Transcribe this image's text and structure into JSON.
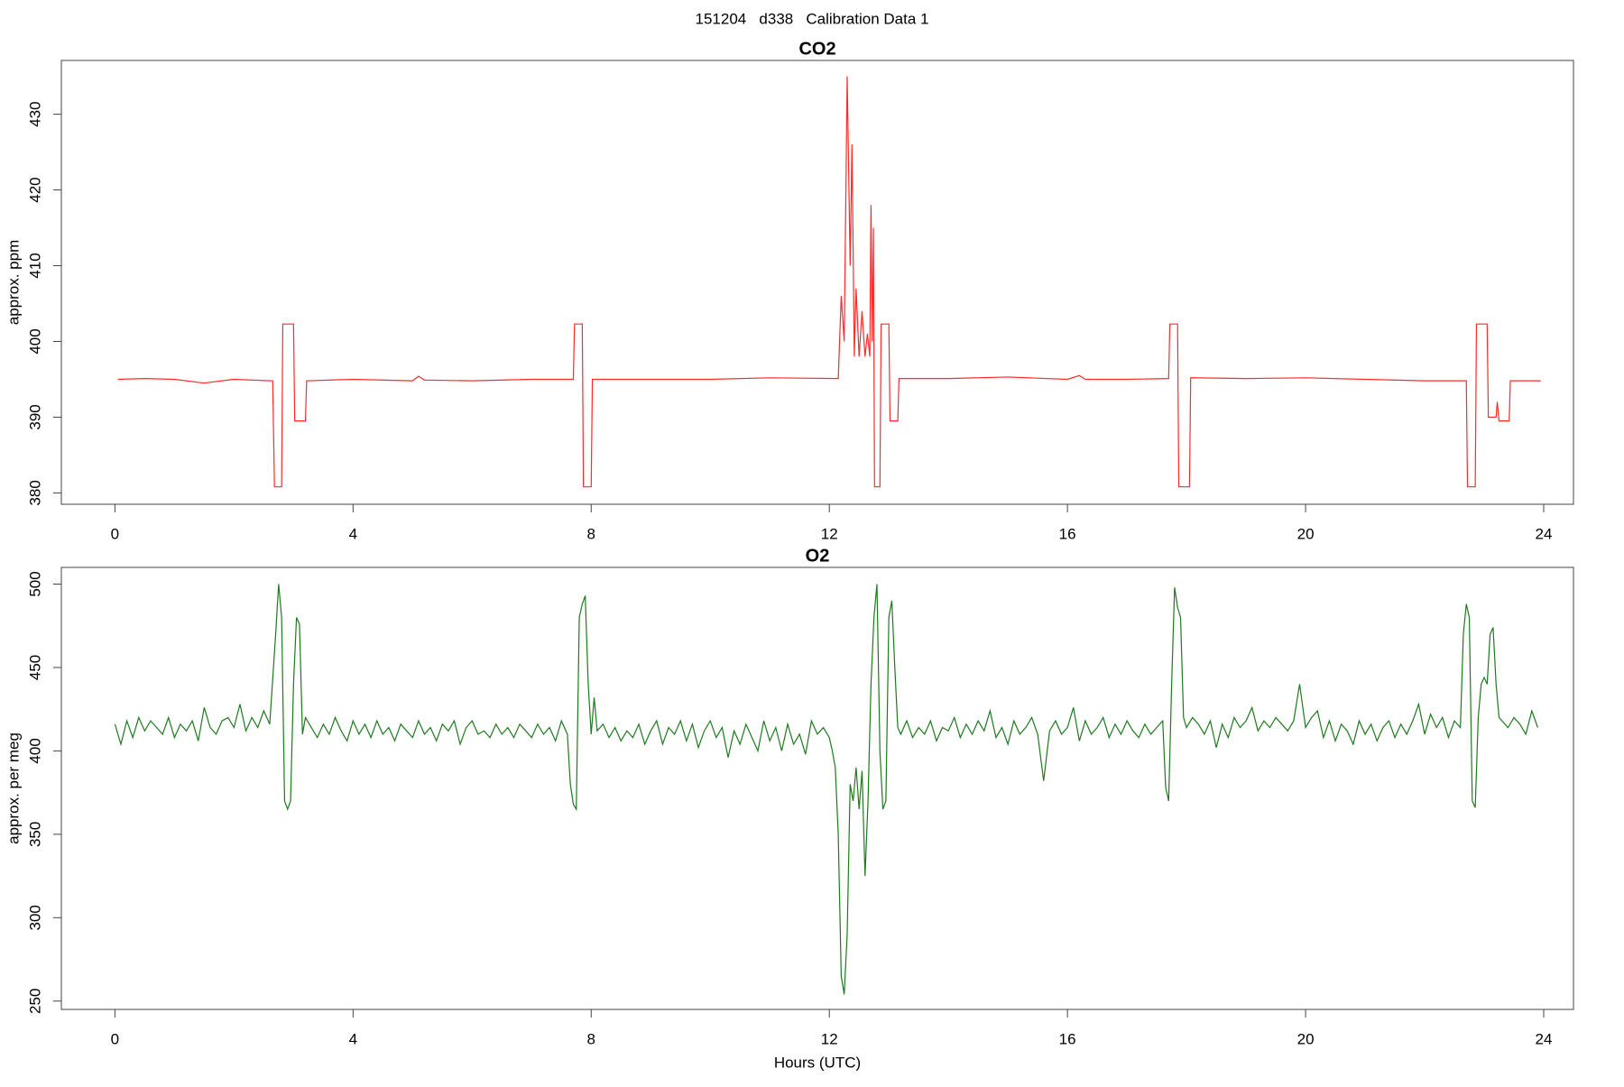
{
  "title": "151204   d338   Calibration Data 1",
  "chart_data": [
    {
      "type": "line",
      "title": "CO2",
      "ylabel": "approx. ppm",
      "xlim": [
        -0.9,
        24.5
      ],
      "xticks": [
        0,
        4,
        8,
        12,
        16,
        20,
        24
      ],
      "ylim": [
        378.5,
        437.1
      ],
      "yticks": [
        380,
        390,
        400,
        410,
        420,
        430
      ],
      "grid": false,
      "x": [
        0.05,
        0.5,
        1.0,
        1.5,
        2.0,
        2.65,
        2.68,
        2.8,
        2.82,
        3.0,
        3.02,
        3.2,
        3.22,
        4.0,
        5.0,
        5.1,
        5.2,
        6.0,
        7.0,
        7.7,
        7.72,
        7.85,
        7.87,
        8.0,
        8.02,
        9.0,
        10.0,
        11.0,
        12.15,
        12.2,
        12.25,
        12.3,
        12.35,
        12.38,
        12.42,
        12.45,
        12.5,
        12.55,
        12.6,
        12.64,
        12.68,
        12.7,
        12.72,
        12.74,
        12.76,
        12.85,
        12.87,
        13.0,
        13.02,
        13.15,
        13.17,
        14.0,
        15.0,
        16.0,
        16.2,
        16.3,
        17.0,
        17.7,
        17.72,
        17.85,
        17.87,
        18.05,
        18.07,
        19.0,
        20.0,
        21.0,
        22.0,
        22.7,
        22.72,
        22.85,
        22.87,
        23.05,
        23.07,
        23.2,
        23.22,
        23.25,
        23.42,
        23.44,
        23.95
      ],
      "series": [
        {
          "color": "#ff2a2a",
          "values": [
            395,
            395.1,
            395,
            394.5,
            395,
            394.8,
            380.8,
            380.8,
            402.3,
            402.3,
            389.5,
            389.5,
            394.8,
            395,
            394.8,
            395.4,
            394.9,
            394.8,
            395,
            395,
            402.3,
            402.3,
            380.8,
            380.8,
            395,
            395,
            395,
            395.2,
            395.1,
            406,
            400,
            435,
            410,
            426,
            398,
            407,
            398,
            404,
            398,
            401,
            398,
            418,
            400,
            415,
            380.8,
            380.8,
            402.3,
            402.3,
            389.5,
            389.5,
            395.1,
            395.1,
            395.3,
            395,
            395.5,
            395,
            395,
            395.1,
            402.3,
            402.3,
            380.8,
            380.8,
            395.2,
            395.1,
            395.2,
            395,
            394.8,
            394.8,
            380.8,
            380.8,
            402.3,
            402.3,
            390,
            390,
            392,
            389.5,
            389.5,
            394.8,
            394.8
          ]
        }
      ]
    },
    {
      "type": "line",
      "title": "O2",
      "ylabel": "approx. per meg",
      "xlabel": "Hours (UTC)",
      "xlim": [
        -0.9,
        24.5
      ],
      "xticks": [
        0,
        4,
        8,
        12,
        16,
        20,
        24
      ],
      "ylim": [
        245,
        510
      ],
      "yticks": [
        250,
        300,
        350,
        400,
        450,
        500
      ],
      "grid": false,
      "x": [
        0.0,
        0.1,
        0.2,
        0.3,
        0.4,
        0.5,
        0.6,
        0.7,
        0.8,
        0.9,
        1.0,
        1.1,
        1.2,
        1.3,
        1.4,
        1.5,
        1.6,
        1.7,
        1.8,
        1.9,
        2.0,
        2.1,
        2.2,
        2.3,
        2.4,
        2.5,
        2.6,
        2.7,
        2.75,
        2.8,
        2.85,
        2.9,
        2.95,
        3.0,
        3.05,
        3.1,
        3.15,
        3.2,
        3.3,
        3.4,
        3.5,
        3.6,
        3.7,
        3.8,
        3.9,
        4.0,
        4.1,
        4.2,
        4.3,
        4.4,
        4.5,
        4.6,
        4.7,
        4.8,
        4.9,
        5.0,
        5.1,
        5.2,
        5.3,
        5.4,
        5.5,
        5.6,
        5.7,
        5.8,
        5.9,
        6.0,
        6.1,
        6.2,
        6.3,
        6.4,
        6.5,
        6.6,
        6.7,
        6.8,
        6.9,
        7.0,
        7.1,
        7.2,
        7.3,
        7.4,
        7.5,
        7.6,
        7.65,
        7.7,
        7.75,
        7.8,
        7.85,
        7.9,
        7.95,
        8.0,
        8.05,
        8.1,
        8.2,
        8.3,
        8.4,
        8.5,
        8.6,
        8.7,
        8.8,
        8.9,
        9.0,
        9.1,
        9.2,
        9.3,
        9.4,
        9.5,
        9.6,
        9.7,
        9.8,
        9.9,
        10.0,
        10.1,
        10.2,
        10.3,
        10.4,
        10.5,
        10.6,
        10.7,
        10.8,
        10.9,
        11.0,
        11.1,
        11.2,
        11.3,
        11.4,
        11.5,
        11.6,
        11.7,
        11.8,
        11.9,
        12.0,
        12.05,
        12.1,
        12.15,
        12.2,
        12.25,
        12.3,
        12.35,
        12.4,
        12.45,
        12.5,
        12.55,
        12.6,
        12.65,
        12.7,
        12.75,
        12.8,
        12.85,
        12.9,
        12.95,
        13.0,
        13.05,
        13.1,
        13.15,
        13.2,
        13.3,
        13.4,
        13.5,
        13.6,
        13.7,
        13.8,
        13.9,
        14.0,
        14.1,
        14.2,
        14.3,
        14.4,
        14.5,
        14.6,
        14.7,
        14.8,
        14.9,
        15.0,
        15.1,
        15.2,
        15.3,
        15.4,
        15.5,
        15.6,
        15.7,
        15.8,
        15.9,
        16.0,
        16.1,
        16.2,
        16.3,
        16.4,
        16.5,
        16.6,
        16.7,
        16.8,
        16.9,
        17.0,
        17.1,
        17.2,
        17.3,
        17.4,
        17.5,
        17.6,
        17.65,
        17.7,
        17.75,
        17.8,
        17.85,
        17.9,
        17.95,
        18.0,
        18.1,
        18.2,
        18.3,
        18.4,
        18.5,
        18.6,
        18.7,
        18.8,
        18.9,
        19.0,
        19.1,
        19.2,
        19.3,
        19.4,
        19.5,
        19.6,
        19.7,
        19.8,
        19.9,
        20.0,
        20.1,
        20.2,
        20.3,
        20.4,
        20.5,
        20.6,
        20.7,
        20.8,
        20.9,
        21.0,
        21.1,
        21.2,
        21.3,
        21.4,
        21.5,
        21.6,
        21.7,
        21.8,
        21.9,
        22.0,
        22.1,
        22.2,
        22.3,
        22.4,
        22.5,
        22.6,
        22.65,
        22.7,
        22.75,
        22.8,
        22.85,
        22.9,
        22.95,
        23.0,
        23.05,
        23.1,
        23.15,
        23.2,
        23.25,
        23.3,
        23.4,
        23.5,
        23.6,
        23.7,
        23.8,
        23.9
      ],
      "series": [
        {
          "color": "#1e7a1e",
          "values": [
            416,
            404,
            418,
            408,
            420,
            412,
            418,
            414,
            410,
            420,
            408,
            416,
            412,
            418,
            406,
            426,
            414,
            410,
            418,
            420,
            414,
            428,
            412,
            420,
            414,
            424,
            416,
            470,
            500,
            480,
            370,
            365,
            370,
            440,
            480,
            476,
            410,
            420,
            414,
            408,
            416,
            410,
            420,
            412,
            406,
            418,
            410,
            416,
            408,
            418,
            410,
            414,
            406,
            416,
            412,
            408,
            418,
            410,
            414,
            406,
            416,
            412,
            418,
            404,
            414,
            418,
            410,
            412,
            408,
            416,
            410,
            414,
            408,
            416,
            412,
            408,
            416,
            410,
            414,
            406,
            418,
            410,
            380,
            368,
            365,
            480,
            488,
            493,
            440,
            410,
            432,
            412,
            416,
            408,
            414,
            406,
            412,
            408,
            416,
            404,
            412,
            418,
            404,
            414,
            410,
            418,
            406,
            416,
            402,
            412,
            418,
            408,
            414,
            396,
            412,
            404,
            416,
            408,
            400,
            418,
            406,
            414,
            400,
            416,
            404,
            410,
            398,
            418,
            410,
            414,
            408,
            400,
            390,
            350,
            265,
            254,
            290,
            380,
            370,
            390,
            365,
            388,
            325,
            370,
            440,
            480,
            500,
            400,
            365,
            370,
            480,
            490,
            450,
            414,
            410,
            418,
            408,
            414,
            410,
            418,
            406,
            414,
            412,
            420,
            408,
            416,
            410,
            418,
            412,
            424,
            408,
            414,
            404,
            418,
            410,
            414,
            420,
            410,
            382,
            412,
            418,
            410,
            414,
            426,
            406,
            418,
            410,
            414,
            420,
            408,
            416,
            410,
            418,
            412,
            408,
            416,
            410,
            414,
            418,
            378,
            370,
            440,
            498,
            486,
            480,
            420,
            414,
            420,
            416,
            410,
            418,
            402,
            416,
            408,
            420,
            414,
            418,
            426,
            412,
            418,
            414,
            420,
            416,
            412,
            418,
            440,
            414,
            420,
            424,
            408,
            418,
            406,
            416,
            412,
            404,
            418,
            410,
            416,
            406,
            414,
            418,
            408,
            416,
            410,
            418,
            428,
            410,
            422,
            414,
            420,
            408,
            418,
            414,
            470,
            488,
            480,
            370,
            366,
            420,
            440,
            444,
            440,
            470,
            474,
            440,
            420,
            418,
            414,
            420,
            416,
            410,
            424,
            414
          ]
        }
      ]
    }
  ]
}
